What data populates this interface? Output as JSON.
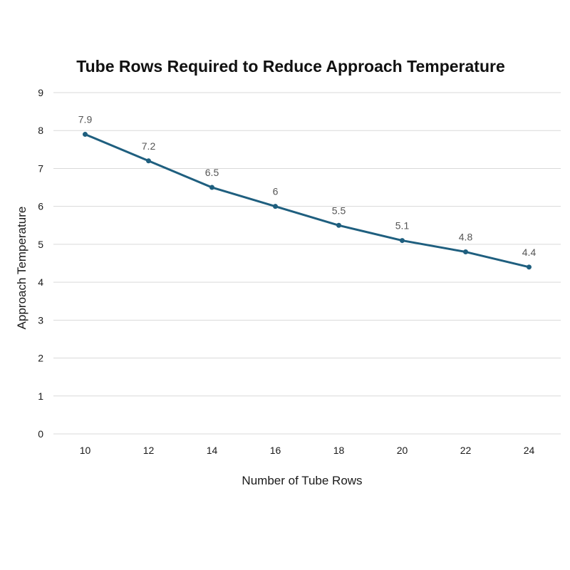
{
  "chart_data": {
    "type": "line",
    "title": "Tube Rows Required to Reduce Approach Temperature",
    "xlabel": "Number of Tube Rows",
    "ylabel": "Approach Temperature",
    "categories": [
      "10",
      "12",
      "14",
      "16",
      "18",
      "20",
      "22",
      "24"
    ],
    "series": [
      {
        "name": "Approach Temperature",
        "values": [
          7.9,
          7.2,
          6.5,
          6,
          5.5,
          5.1,
          4.8,
          4.4
        ],
        "labels": [
          "7.9",
          "7.2",
          "6.5",
          "6",
          "5.5",
          "5.1",
          "4.8",
          "4.4"
        ]
      }
    ],
    "ylim": [
      0,
      9
    ],
    "yticks": [
      "0",
      "1",
      "2",
      "3",
      "4",
      "5",
      "6",
      "7",
      "8",
      "9"
    ],
    "grid": true,
    "legend": "none",
    "colors": {
      "line": "#1f5f7f",
      "grid": "#d9d9d9"
    }
  }
}
